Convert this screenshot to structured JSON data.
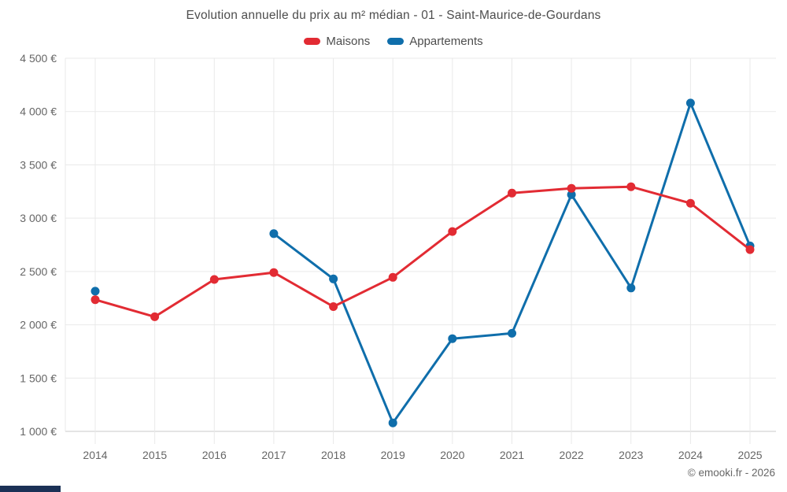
{
  "footer": "© emooki.fr - 2026",
  "chart_data": {
    "type": "line",
    "title": "Evolution annuelle du prix au m² médian - 01 - Saint-Maurice-de-Gourdans",
    "x": [
      2014,
      2015,
      2016,
      2017,
      2018,
      2019,
      2020,
      2021,
      2022,
      2023,
      2024,
      2025
    ],
    "series": [
      {
        "name": "Maisons",
        "color": "#e22b33",
        "values": [
          2235,
          2075,
          2425,
          2490,
          2170,
          2445,
          2875,
          3235,
          3280,
          3295,
          3140,
          2705
        ]
      },
      {
        "name": "Appartements",
        "color": "#0f6eab",
        "values": [
          2315,
          null,
          null,
          2855,
          2430,
          1080,
          1870,
          1920,
          3220,
          2345,
          4080,
          2740
        ]
      }
    ],
    "xlabel": "",
    "ylabel": "",
    "ylim": [
      1000,
      4500
    ],
    "ytick_step": 500,
    "ytick_labels": [
      "1 000 €",
      "1 500 €",
      "2 000 €",
      "2 500 €",
      "3 000 €",
      "3 500 €",
      "4 000 €",
      "4 500 €"
    ],
    "currency_suffix": "€",
    "grid": true,
    "legend_position": "top",
    "marker": "circle"
  }
}
